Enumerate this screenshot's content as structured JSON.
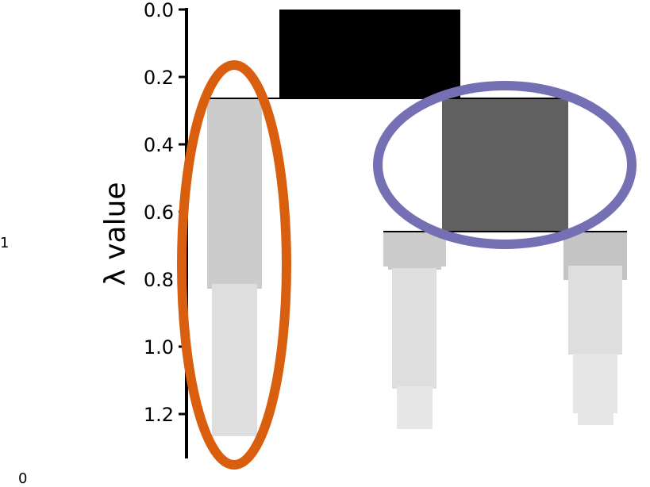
{
  "chart_data": {
    "type": "icicle",
    "ylabel": "λ value",
    "ylim": [
      0,
      1.32
    ],
    "y_axis_inverted": true,
    "yticks": [
      {
        "value": 0.0,
        "label": "0.0"
      },
      {
        "value": 0.2,
        "label": "0.2"
      },
      {
        "value": 0.4,
        "label": "0.4"
      },
      {
        "value": 0.6,
        "label": "0.6"
      },
      {
        "value": 0.8,
        "label": "0.8"
      },
      {
        "value": 1.0,
        "label": "1.0"
      },
      {
        "value": 1.2,
        "label": "1.2"
      }
    ],
    "side_labels": [
      "1",
      "0"
    ],
    "colors": {
      "root": "#000000",
      "selected_cluster": "#606060",
      "light": "#cccccc",
      "lighter": "#dedede",
      "lightest": "#e6e6e6",
      "mid_light": "#c4c4c4",
      "highlight_orange": "#d95f0e",
      "highlight_purple": "#7570b3"
    }
  }
}
